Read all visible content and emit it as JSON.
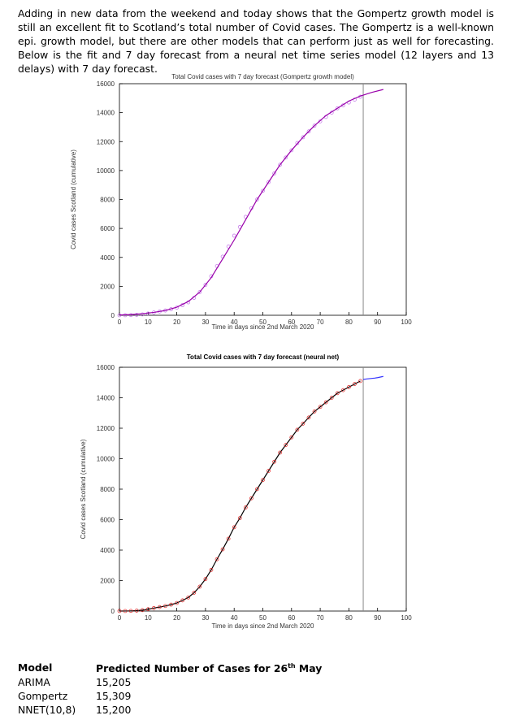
{
  "paragraph": "Adding in new data from the weekend and today shows that the Gompertz growth model is still an excellent fit to Scotland’s total number of Covid cases. The Gompertz is a well-known epi. growth model, but there are other models that can perform just as well for forecasting. Below is the fit and 7 day forecast from a neural net time series model (12 layers and 13 delays) with 7 day forecast.",
  "chart_data": [
    {
      "type": "line",
      "title": "Total Covid cases with 7 day forecast (Gompertz growth model)",
      "x_label": "Time in days since 2nd March 2020",
      "y_label": "Covid cases Scotland (cumulative)",
      "xlim": [
        0,
        100
      ],
      "ylim": [
        0,
        16000
      ],
      "xticks": [
        0,
        10,
        20,
        30,
        40,
        50,
        60,
        70,
        80,
        90,
        100
      ],
      "yticks": [
        0,
        2000,
        4000,
        6000,
        8000,
        10000,
        12000,
        14000,
        16000
      ],
      "vline": 85,
      "vline_color": "#888888",
      "series": [
        {
          "marker": "circle",
          "color": "#c070e8",
          "x": [
            0,
            2,
            4,
            6,
            8,
            10,
            12,
            14,
            16,
            18,
            20,
            22,
            24,
            26,
            28,
            30,
            32,
            34,
            36,
            38,
            40,
            42,
            44,
            46,
            48,
            50,
            52,
            54,
            56,
            58,
            60,
            62,
            64,
            66,
            68,
            70,
            72,
            74,
            76,
            78,
            80,
            82,
            84
          ],
          "values": [
            1,
            3,
            11,
            27,
            60,
            120,
            195,
            260,
            330,
            420,
            530,
            700,
            890,
            1200,
            1600,
            2100,
            2700,
            3400,
            4050,
            4750,
            5500,
            6100,
            6800,
            7400,
            8000,
            8600,
            9200,
            9800,
            10400,
            10900,
            11400,
            11900,
            12300,
            12700,
            13100,
            13400,
            13700,
            14000,
            14300,
            14500,
            14700,
            14900,
            15100
          ]
        },
        {
          "marker": "line",
          "color": "#9900aa",
          "x": [
            0,
            4,
            8,
            12,
            16,
            20,
            24,
            28,
            32,
            36,
            40,
            44,
            48,
            52,
            56,
            60,
            64,
            68,
            72,
            76,
            80,
            84,
            88,
            92
          ],
          "values": [
            20,
            50,
            110,
            200,
            330,
            560,
            950,
            1600,
            2600,
            3900,
            5200,
            6600,
            8000,
            9200,
            10400,
            11400,
            12300,
            13100,
            13800,
            14300,
            14800,
            15150,
            15400,
            15600
          ]
        }
      ]
    },
    {
      "type": "line",
      "title": "Total Covid cases with 7 day forecast (neural net)",
      "x_label": "Time in days since 2nd March 2020",
      "y_label": "Covid cases Scotland (cumulative)",
      "xlim": [
        0,
        100
      ],
      "ylim": [
        0,
        16000
      ],
      "xticks": [
        0,
        10,
        20,
        30,
        40,
        50,
        60,
        70,
        80,
        90,
        100
      ],
      "yticks": [
        0,
        2000,
        4000,
        6000,
        8000,
        10000,
        12000,
        14000,
        16000
      ],
      "vline": 85,
      "vline_color": "#888888",
      "series": [
        {
          "marker": "line",
          "color": "#000000",
          "x": [
            0,
            2,
            4,
            6,
            8,
            10,
            12,
            14,
            16,
            18,
            20,
            22,
            24,
            26,
            28,
            30,
            32,
            34,
            36,
            38,
            40,
            42,
            44,
            46,
            48,
            50,
            52,
            54,
            56,
            58,
            60,
            62,
            64,
            66,
            68,
            70,
            72,
            74,
            76,
            78,
            80,
            82,
            84
          ],
          "values": [
            1,
            3,
            11,
            27,
            60,
            120,
            195,
            260,
            330,
            420,
            530,
            700,
            890,
            1200,
            1600,
            2100,
            2700,
            3400,
            4050,
            4750,
            5500,
            6100,
            6800,
            7400,
            8000,
            8600,
            9200,
            9800,
            10400,
            10900,
            11400,
            11900,
            12300,
            12700,
            13100,
            13400,
            13700,
            14000,
            14300,
            14500,
            14700,
            14900,
            15100
          ]
        },
        {
          "marker": "circle",
          "color": "#e02020",
          "x": [
            0,
            2,
            4,
            6,
            8,
            10,
            12,
            14,
            16,
            18,
            20,
            22,
            24,
            26,
            28,
            30,
            32,
            34,
            36,
            38,
            40,
            42,
            44,
            46,
            48,
            50,
            52,
            54,
            56,
            58,
            60,
            62,
            64,
            66,
            68,
            70,
            72,
            74,
            76,
            78,
            80,
            82,
            84
          ],
          "values": [
            1,
            3,
            11,
            27,
            60,
            120,
            195,
            260,
            330,
            420,
            530,
            700,
            890,
            1200,
            1600,
            2100,
            2700,
            3400,
            4050,
            4750,
            5500,
            6100,
            6800,
            7400,
            8000,
            8600,
            9200,
            9800,
            10400,
            10900,
            11400,
            11900,
            12300,
            12700,
            13100,
            13400,
            13700,
            14000,
            14300,
            14500,
            14700,
            14900,
            15100
          ]
        },
        {
          "marker": "line",
          "color": "#3333ff",
          "x": [
            85,
            86,
            87,
            88,
            89,
            90,
            91,
            92
          ],
          "values": [
            15200,
            15230,
            15250,
            15270,
            15290,
            15320,
            15360,
            15400
          ]
        }
      ]
    }
  ],
  "table": {
    "header": [
      "Model",
      [
        "Predicted Number of Cases for 26",
        "th",
        " May"
      ]
    ],
    "rows": [
      [
        "ARIMA",
        "15,205"
      ],
      [
        "Gompertz",
        "15,309"
      ],
      [
        "NNET(10,8)",
        "15,200"
      ]
    ]
  }
}
